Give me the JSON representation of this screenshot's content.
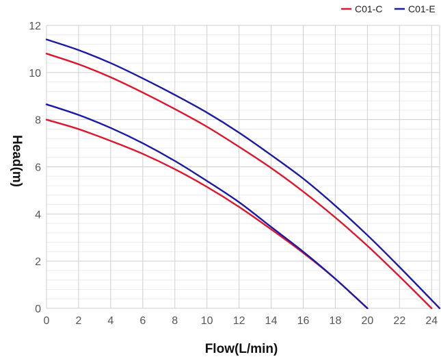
{
  "chart_data": {
    "type": "line",
    "title": "",
    "xlabel": "Flow(L/min)",
    "ylabel": "Head(m)",
    "xlim": [
      0,
      24.5
    ],
    "ylim": [
      0,
      12
    ],
    "x_ticks": [
      "0",
      "2",
      "4",
      "6",
      "8",
      "10",
      "12",
      "14",
      "16",
      "18",
      "20",
      "22",
      "24"
    ],
    "y_ticks": [
      "0",
      "2",
      "4",
      "6",
      "8",
      "10",
      "12"
    ],
    "grid": true,
    "legend_position": "top-right",
    "legend": [
      {
        "name": "C01-C",
        "color": "#e0142c"
      },
      {
        "name": "C01-E",
        "color": "#1a1aa6"
      }
    ],
    "series": [
      {
        "name": "C01-C",
        "color": "#e0142c",
        "x": [
          0,
          2,
          4,
          6,
          8,
          10,
          12,
          14,
          16,
          18,
          20,
          22,
          24
        ],
        "y": [
          10.8,
          10.35,
          9.8,
          9.15,
          8.45,
          7.7,
          6.85,
          5.95,
          4.95,
          3.85,
          2.65,
          1.35,
          0
        ]
      },
      {
        "name": "C01-E",
        "color": "#1a1aa6",
        "x": [
          0,
          2,
          4,
          6,
          8,
          10,
          12,
          14,
          16,
          18,
          20,
          22,
          24.5
        ],
        "y": [
          11.4,
          10.95,
          10.4,
          9.75,
          9.05,
          8.3,
          7.45,
          6.5,
          5.5,
          4.35,
          3.1,
          1.75,
          0
        ]
      },
      {
        "name": "C01-C",
        "color": "#e0142c",
        "x": [
          0,
          2,
          4,
          6,
          8,
          10,
          12,
          14,
          16,
          18,
          20
        ],
        "y": [
          8.0,
          7.6,
          7.1,
          6.55,
          5.9,
          5.15,
          4.3,
          3.35,
          2.35,
          1.25,
          0
        ]
      },
      {
        "name": "C01-E",
        "color": "#1a1aa6",
        "x": [
          0,
          2,
          4,
          6,
          8,
          10,
          12,
          14,
          16,
          18,
          20
        ],
        "y": [
          8.65,
          8.2,
          7.65,
          7.0,
          6.25,
          5.4,
          4.5,
          3.45,
          2.4,
          1.25,
          0
        ]
      }
    ]
  }
}
